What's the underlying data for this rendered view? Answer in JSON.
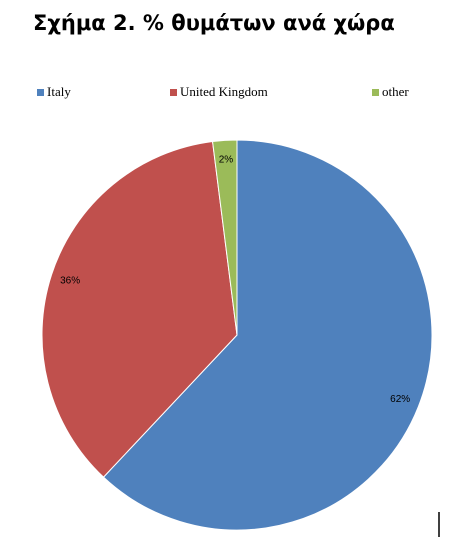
{
  "chart_data": {
    "type": "pie",
    "title": "Σχήμα 2. % θυμάτων ανά χώρα",
    "categories": [
      "Italy",
      "United Kingdom",
      "other"
    ],
    "values": [
      62,
      36,
      2
    ],
    "value_labels": [
      "62%",
      "36%",
      "2%"
    ],
    "colors": [
      "#4f81bd",
      "#c0504d",
      "#9bbb59"
    ],
    "legend": "top"
  }
}
